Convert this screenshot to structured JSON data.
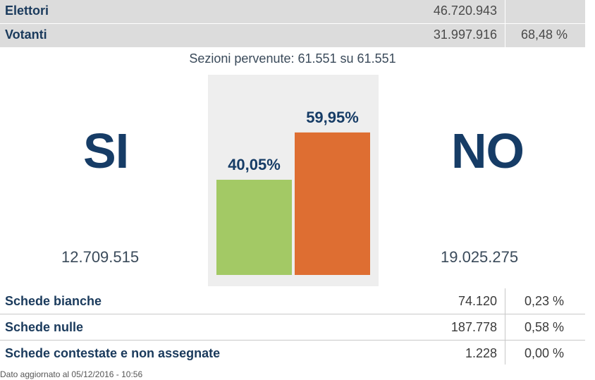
{
  "top": {
    "rows": [
      {
        "label": "Elettori",
        "value": "46.720.943",
        "pct": ""
      },
      {
        "label": "Votanti",
        "value": "31.997.916",
        "pct": "68,48 %"
      }
    ]
  },
  "sections_text": "Sezioni pervenute: 61.551 su 61.551",
  "si": {
    "label": "SI",
    "votes": "12.709.515"
  },
  "no": {
    "label": "NO",
    "votes": "19.025.275"
  },
  "chart_data": {
    "type": "bar",
    "categories": [
      "SI",
      "NO"
    ],
    "values": [
      40.05,
      59.95
    ],
    "data_labels": [
      "40,05%",
      "59,95%"
    ],
    "colors": [
      "#a3c965",
      "#de6e32"
    ],
    "ylim": [
      0,
      70
    ],
    "grid": false,
    "title": "",
    "xlabel": "",
    "ylabel": ""
  },
  "bottom": {
    "rows": [
      {
        "label": "Schede bianche",
        "value": "74.120",
        "pct": "0,23 %"
      },
      {
        "label": "Schede nulle",
        "value": "187.778",
        "pct": "0,58 %"
      },
      {
        "label": "Schede contestate e non assegnate",
        "value": "1.228",
        "pct": "0,00 %"
      }
    ]
  },
  "footer": "Dato aggiornato al 05/12/2016 - 10:56"
}
